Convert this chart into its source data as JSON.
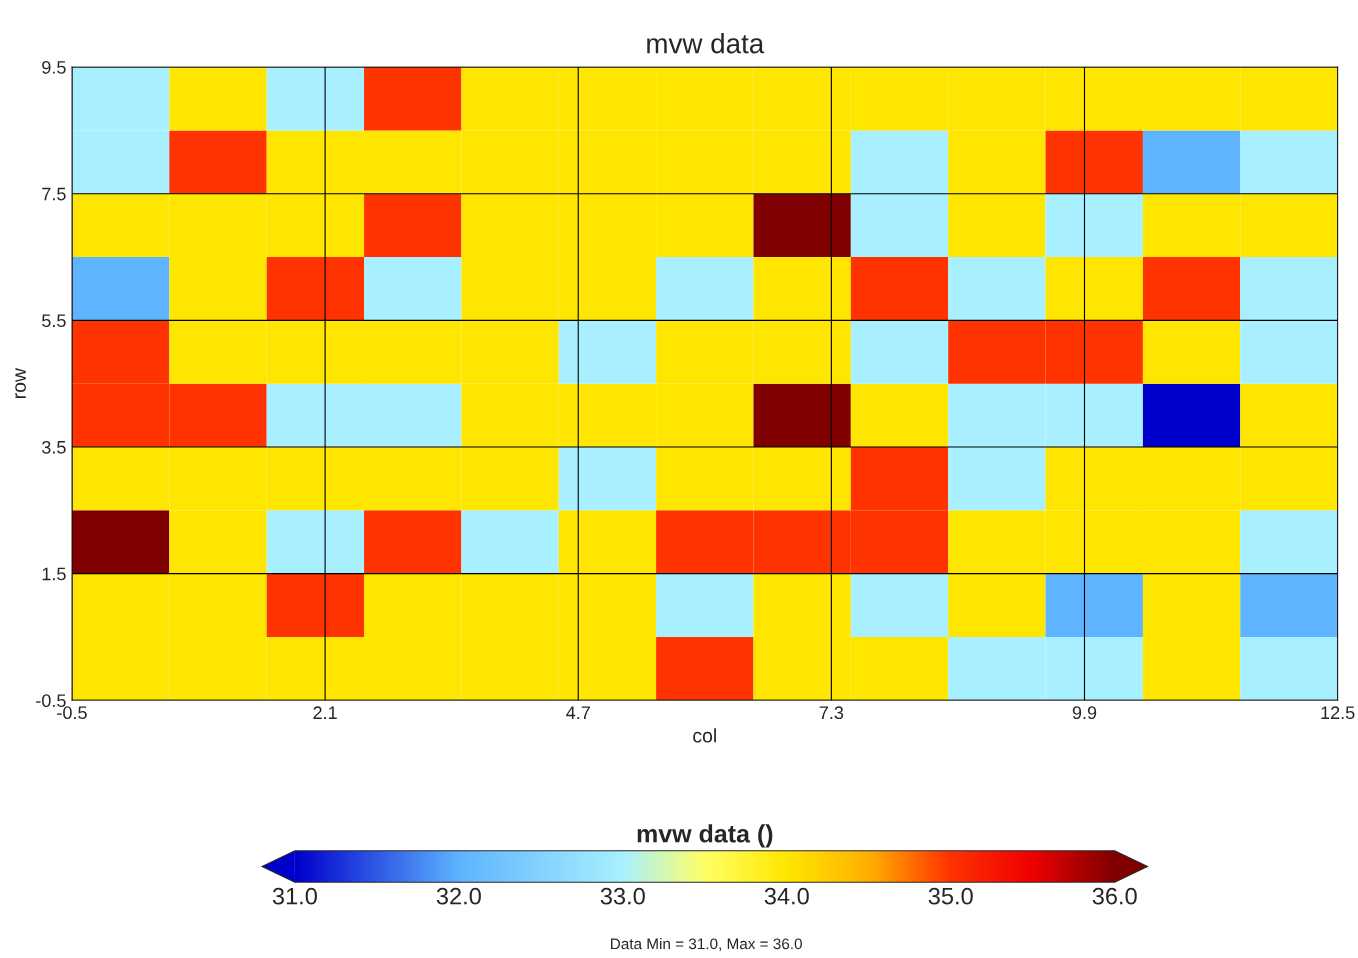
{
  "chart_data": {
    "type": "heatmap",
    "title": "mvw data",
    "xlabel": "col",
    "ylabel": "row",
    "clabel": "mvw data ()",
    "cells": [
      [
        33,
        34,
        33,
        35,
        34,
        34,
        34,
        34,
        34,
        34,
        34,
        34,
        34
      ],
      [
        33,
        35,
        34,
        34,
        34,
        34,
        34,
        34,
        33,
        34,
        35,
        32,
        33
      ],
      [
        34,
        34,
        34,
        35,
        34,
        34,
        34,
        36,
        33,
        34,
        33,
        34,
        34
      ],
      [
        32,
        34,
        35,
        33,
        34,
        34,
        33,
        34,
        35,
        33,
        34,
        35,
        33
      ],
      [
        35,
        34,
        34,
        34,
        34,
        33,
        34,
        34,
        33,
        35,
        35,
        34,
        33
      ],
      [
        35,
        35,
        33,
        33,
        34,
        34,
        34,
        36,
        34,
        33,
        33,
        31,
        34
      ],
      [
        34,
        34,
        34,
        34,
        34,
        33,
        34,
        34,
        35,
        33,
        34,
        34,
        34
      ],
      [
        36,
        34,
        33,
        35,
        33,
        34,
        35,
        35,
        35,
        34,
        34,
        34,
        33
      ],
      [
        34,
        34,
        35,
        34,
        34,
        34,
        33,
        34,
        33,
        34,
        32,
        34,
        32
      ],
      [
        34,
        34,
        34,
        34,
        34,
        34,
        35,
        34,
        34,
        33,
        33,
        34,
        33
      ]
    ],
    "xlim": [
      -0.5,
      12.5
    ],
    "xticks": [
      -0.5,
      2.1,
      4.7,
      7.3,
      9.9,
      12.5
    ],
    "ylim": [
      -0.5,
      9.5
    ],
    "yticks": [
      -0.5,
      1.5,
      3.5,
      5.5,
      7.5,
      9.5
    ],
    "clim": [
      31,
      36
    ],
    "cticks": [
      {
        "value": 31,
        "label": "31.0"
      },
      {
        "value": 32,
        "label": "32.0"
      },
      {
        "value": 33,
        "label": "33.0"
      },
      {
        "value": 34,
        "label": "34.0"
      },
      {
        "value": 35,
        "label": "35.0"
      },
      {
        "value": 36,
        "label": "36.0"
      }
    ],
    "grid": true,
    "annotations": [
      "Data Min = 31.0, Max = 36.0"
    ]
  }
}
